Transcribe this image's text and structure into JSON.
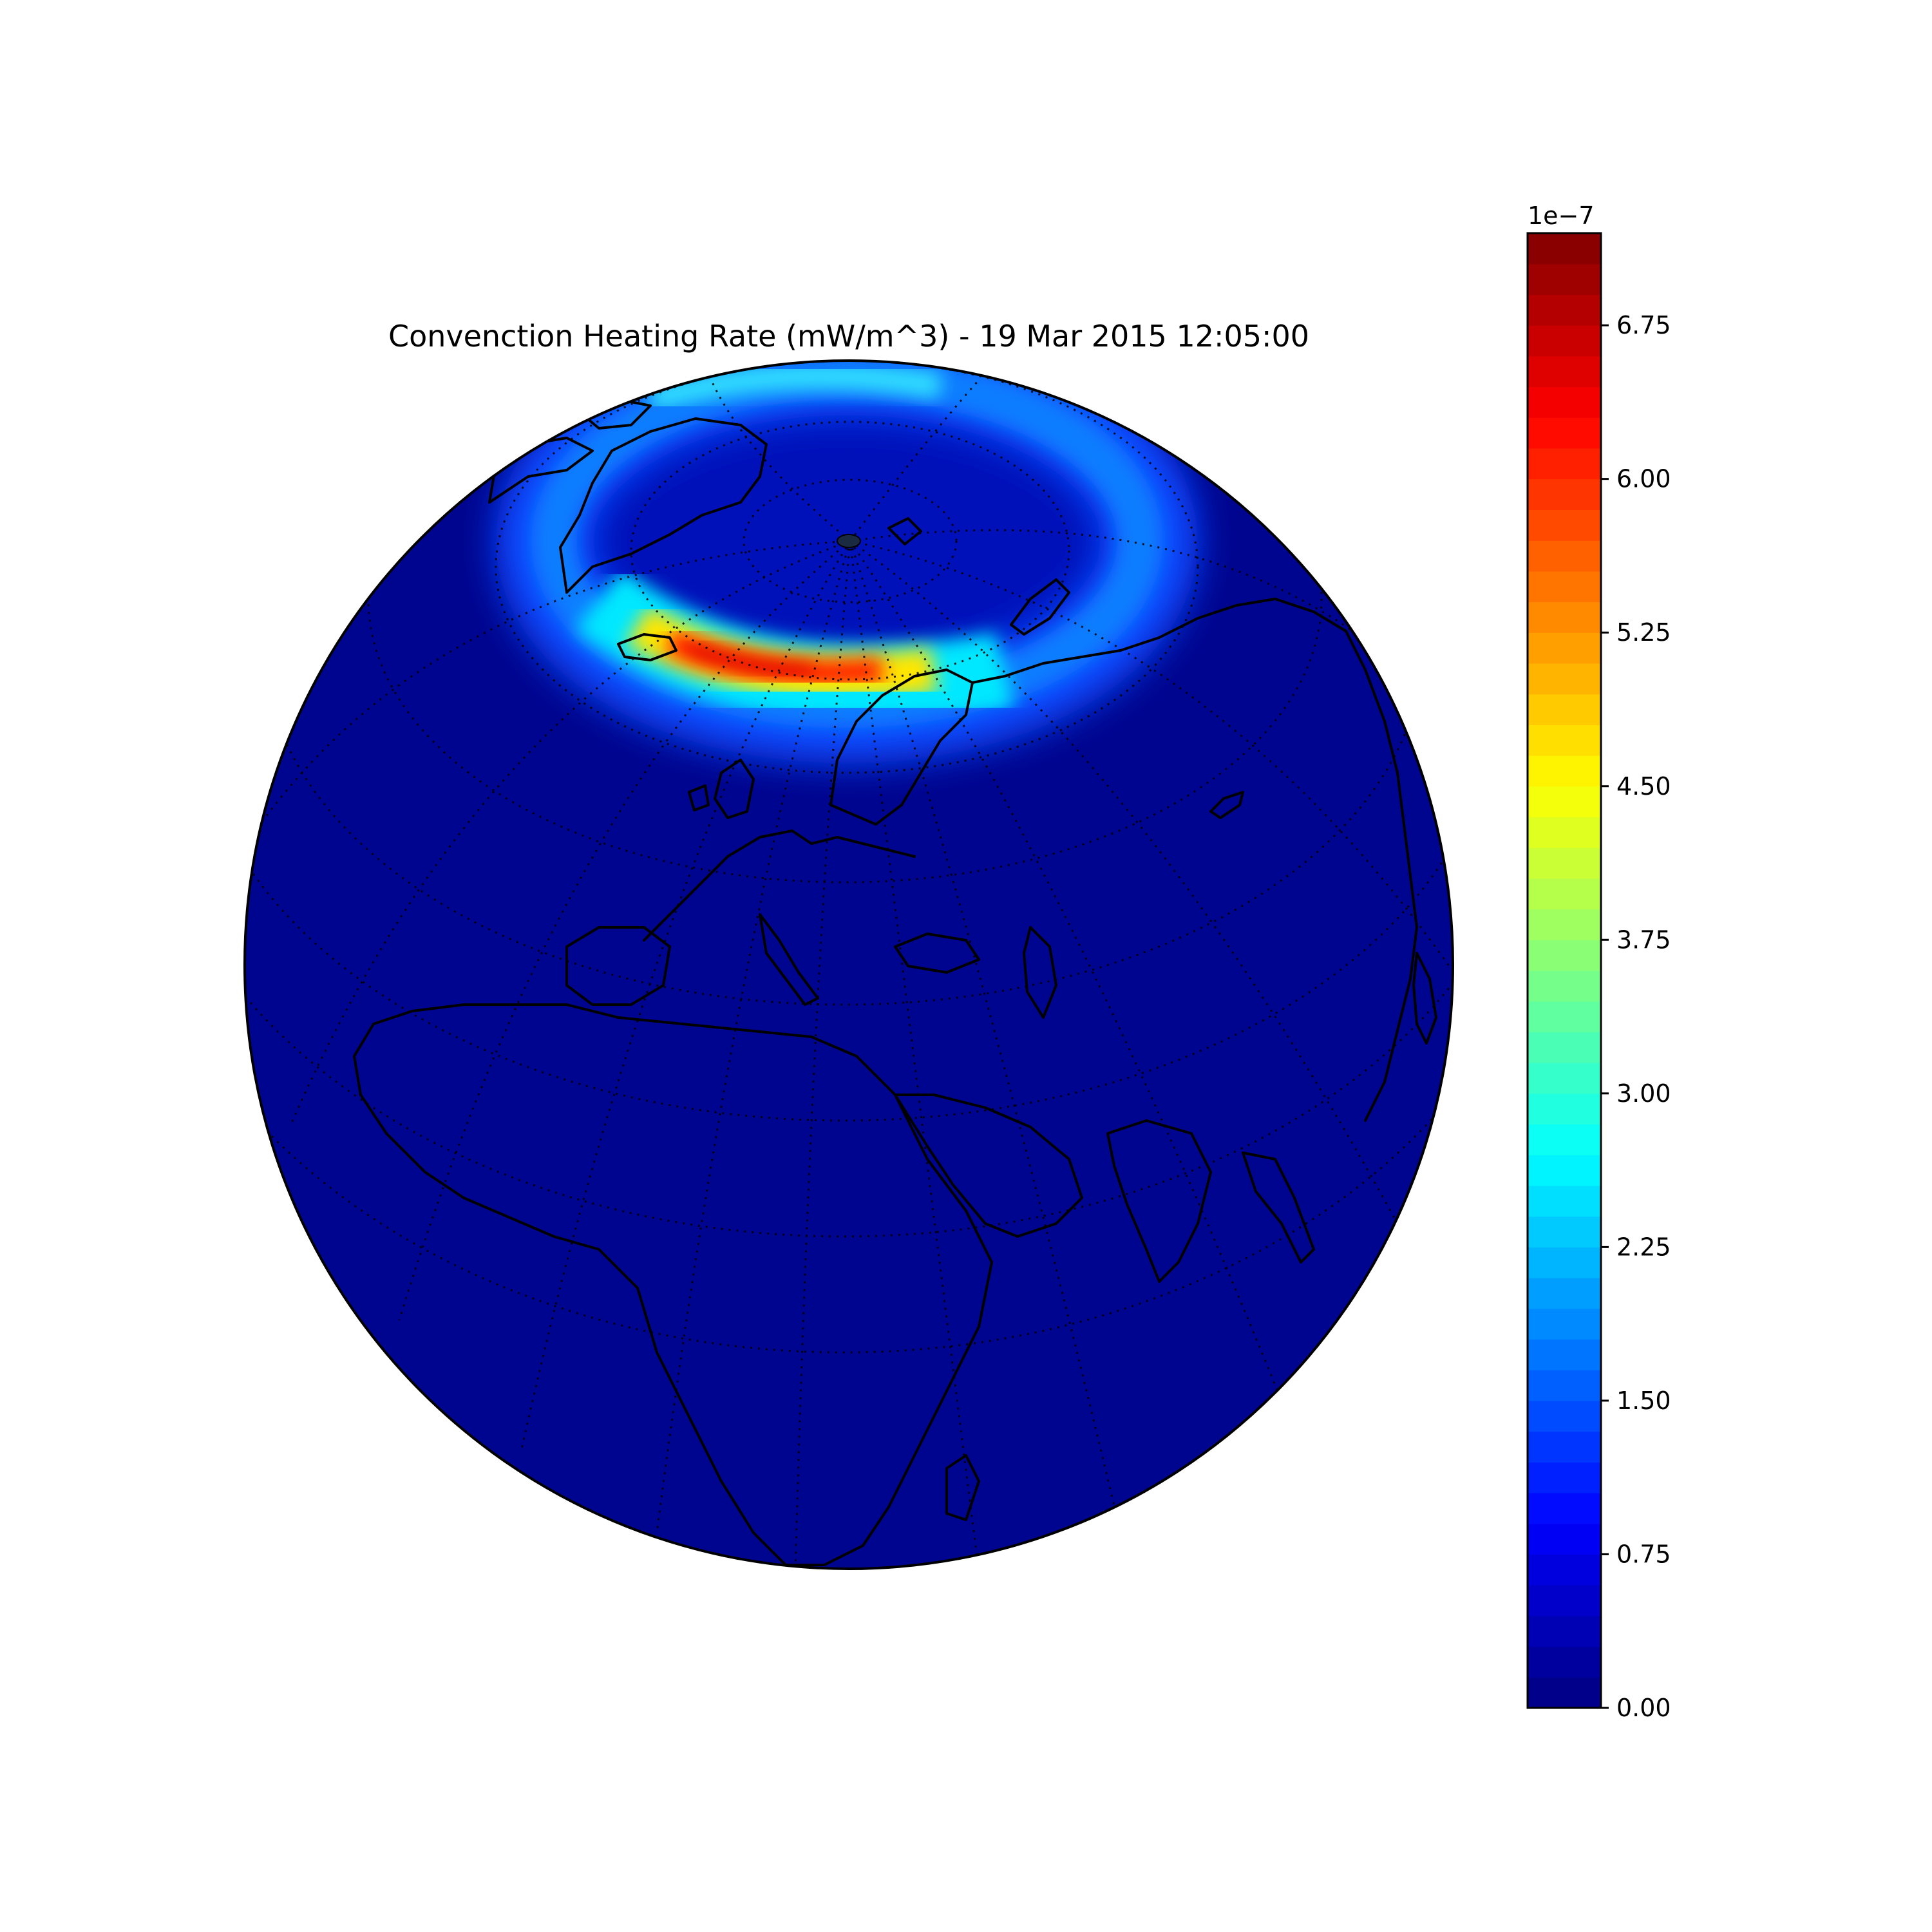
{
  "chart_data": {
    "type": "heatmap",
    "title": "Convenction Heating Rate (mW/m^3) - 19 Mar 2015 12:05:00",
    "projection": "orthographic globe, centered over Europe / Africa",
    "colormap": "jet",
    "colorbar": {
      "position": "right",
      "multiplier_label": "1e−7",
      "range": [
        0.0,
        7.2
      ],
      "ticks": [
        0.0,
        0.75,
        1.5,
        2.25,
        3.0,
        3.75,
        4.5,
        5.25,
        6.0,
        6.75
      ],
      "tick_labels": [
        "0.00",
        "0.75",
        "1.50",
        "2.25",
        "3.00",
        "3.75",
        "4.50",
        "5.25",
        "6.00",
        "6.75"
      ],
      "levels": 48
    },
    "field": {
      "feature": "auroral oval of enhanced heating around the north pole",
      "background_value": 0.1,
      "peak_value": 7.0,
      "peak_region": "Norwegian Sea / Scandinavia sector"
    },
    "gridlines": true,
    "coastlines": true
  }
}
